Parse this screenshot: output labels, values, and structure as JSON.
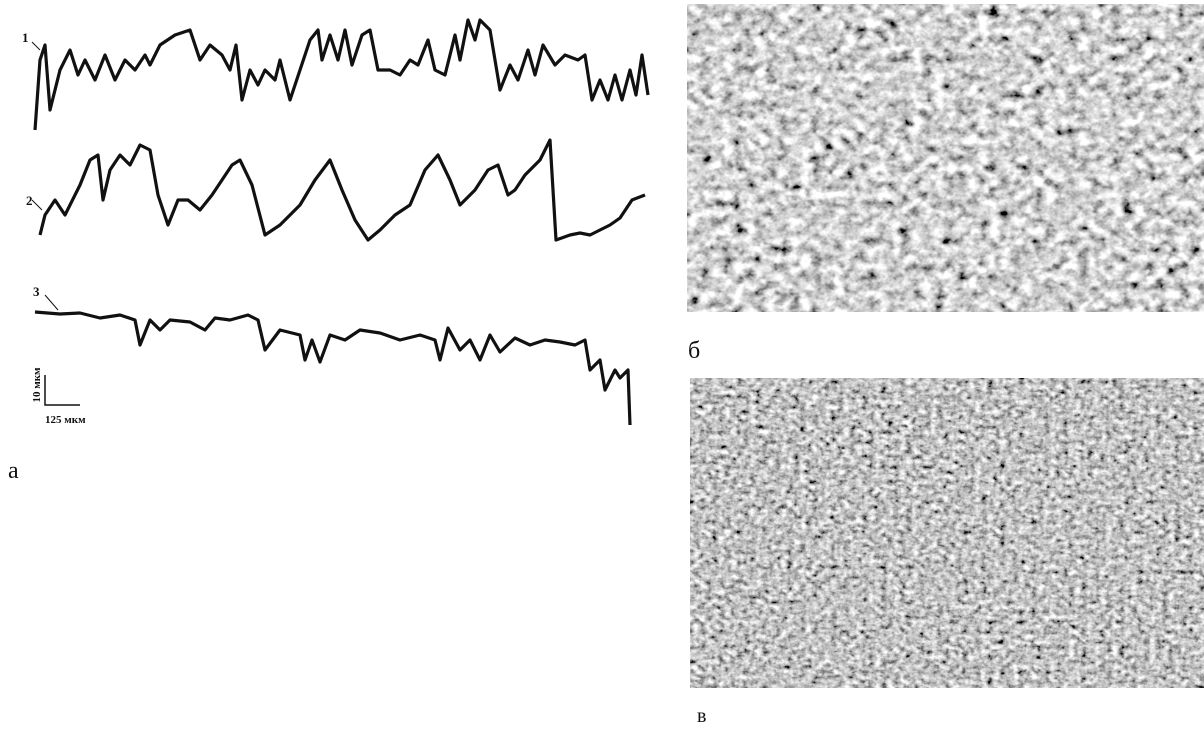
{
  "figure": {
    "panel_a": {
      "label": "а",
      "curve_labels": [
        "1",
        "2",
        "3"
      ],
      "scale_vertical": "10 мкм",
      "scale_horizontal": "125 мкм"
    },
    "panel_b": {
      "label": "б"
    },
    "panel_c": {
      "label": "в"
    }
  }
}
